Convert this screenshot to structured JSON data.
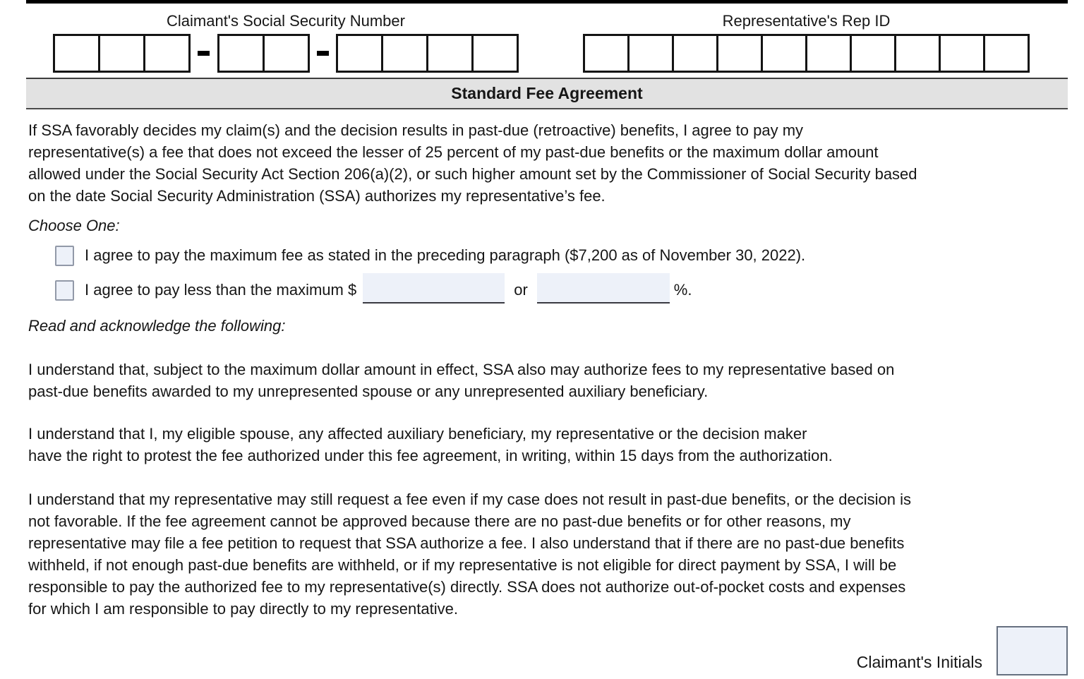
{
  "header": {
    "ssn_label": "Claimant's Social Security Number",
    "ssn_groups": [
      3,
      2,
      4
    ],
    "rep_id_label": "Representative's Rep ID",
    "rep_id_boxes": 10
  },
  "section": {
    "title": "Standard Fee Agreement"
  },
  "agreement": {
    "intro": "If SSA favorably decides my claim(s) and the decision results in past-due (retroactive) benefits, I agree to pay my\nrepresentative(s) a fee that does not exceed the lesser of 25 percent of my past-due benefits or the maximum dollar amount\nallowed under the Social Security Act Section 206(a)(2), or such higher amount set by the Commissioner of Social Security based\non the date Social Security Administration (SSA) authorizes my representative’s fee.",
    "choose_one": "Choose One:",
    "option_max_label": "I agree to pay the maximum fee as stated in the preceding paragraph ($7,200 as of November 30, 2022).",
    "option_max_checked": false,
    "option_less_prefix": "I agree to pay less than the maximum $",
    "amount_value": "",
    "or_label": "or",
    "percent_value": "",
    "percent_suffix": "%.",
    "option_less_checked": false,
    "acknowledge": "Read and acknowledge the following:",
    "understand_1": "I understand that, subject to the maximum dollar amount in effect, SSA also may authorize fees to my representative based on\npast-due benefits awarded to my unrepresented spouse or any unrepresented auxiliary beneficiary.",
    "understand_2": "I understand that I, my eligible spouse, any affected auxiliary beneficiary, my representative or the decision maker\nhave the right to protest the fee authorized under this fee agreement, in writing, within 15 days from the authorization.",
    "understand_3": "I understand that my representative may still request a fee even if my case does not result in past-due benefits, or the decision is\nnot favorable. If the fee agreement cannot be approved because there are no past-due benefits or for other reasons, my\nrepresentative may file a fee petition to request that SSA authorize a fee. I also understand that if there are no past-due benefits\nwithheld, if not enough past-due benefits are withheld, or if my representative is not eligible for direct payment by SSA, I will be\nresponsible to pay the authorized fee to my representative(s) directly. SSA does not authorize out-of-pocket costs and expenses\nfor which I am responsible to pay directly to my representative.",
    "initials_label": "Claimant's Initials",
    "initials_value": ""
  },
  "colors": {
    "field_fill": "#edf1f9",
    "field_border": "#9299a8",
    "field_underline": "#3a3a42",
    "header_bar_fill": "#e2e2e2",
    "box_border": "#141414"
  }
}
